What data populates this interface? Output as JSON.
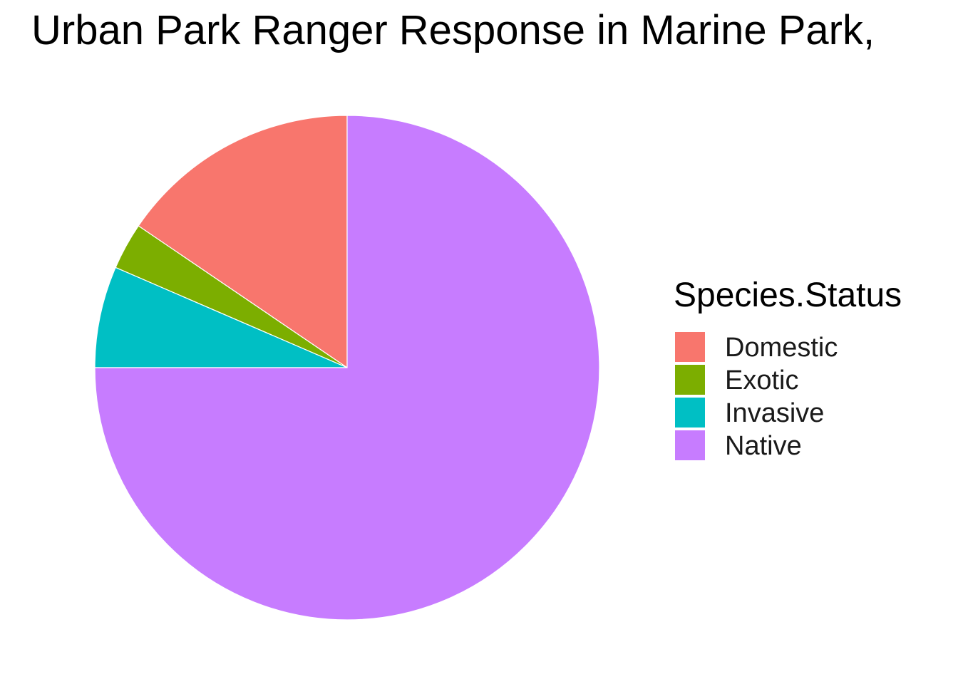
{
  "chart_data": {
    "type": "pie",
    "title": "Urban Park Ranger Response in Marine Park,",
    "legend": {
      "title": "Species.Status",
      "placement": "right"
    },
    "categories": [
      "Domestic",
      "Exotic",
      "Invasive",
      "Native"
    ],
    "values": [
      15.5,
      3.0,
      6.5,
      75.0
    ],
    "colors": [
      "#F8766D",
      "#7CAE00",
      "#00BFC4",
      "#C77CFF"
    ],
    "start_angle_deg": 0,
    "direction": "counterclockwise"
  }
}
